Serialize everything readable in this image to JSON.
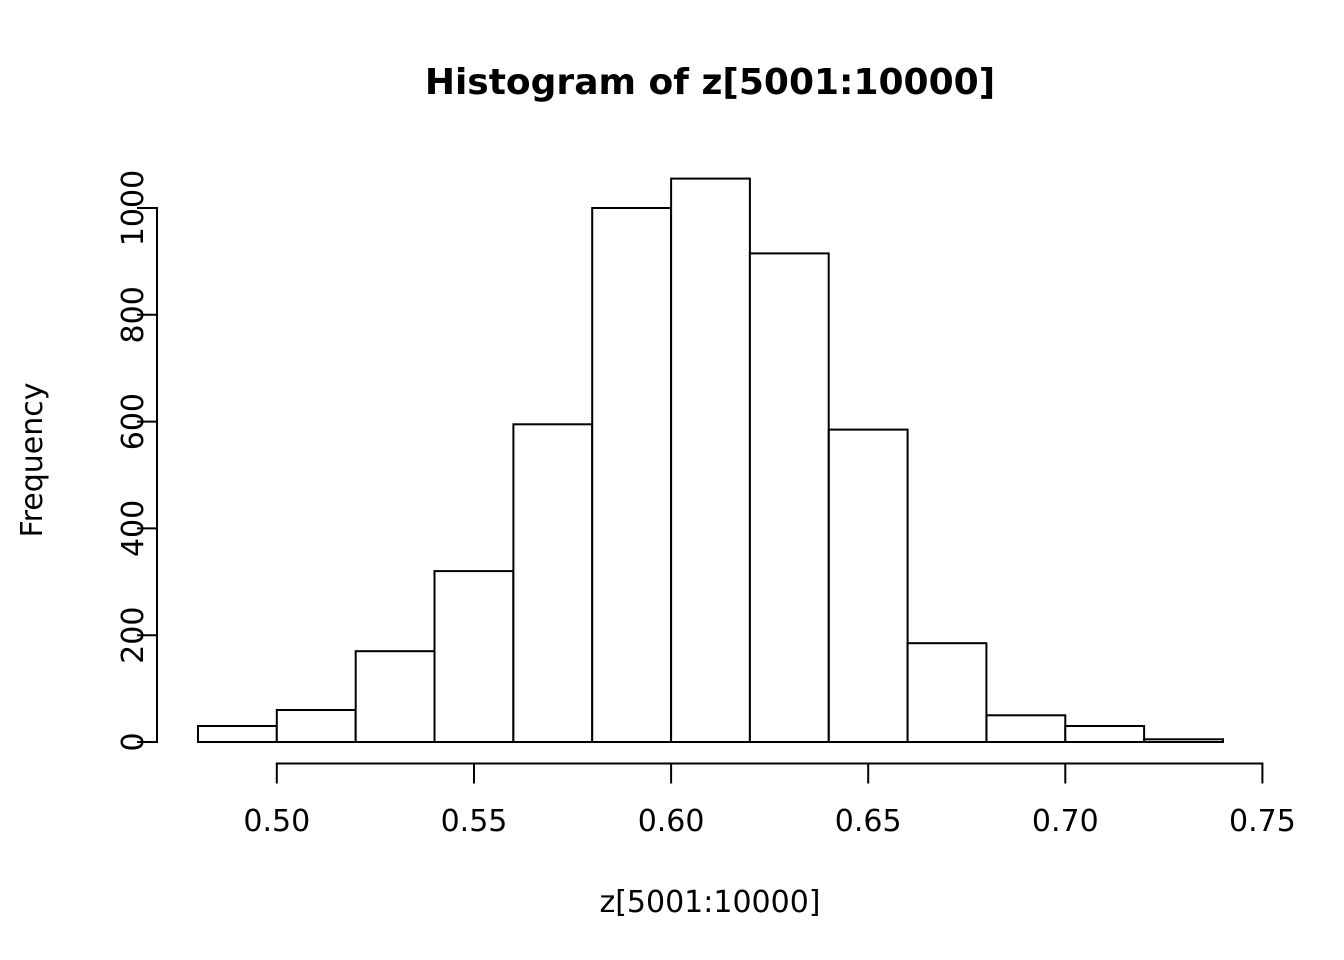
{
  "chart_data": {
    "type": "bar",
    "subtype": "histogram",
    "title": "Histogram of z[5001:10000]",
    "xlabel": "z[5001:10000]",
    "ylabel": "Frequency",
    "bin_edges": [
      0.48,
      0.5,
      0.52,
      0.54,
      0.56,
      0.58,
      0.6,
      0.62,
      0.64,
      0.66,
      0.68,
      0.7,
      0.72,
      0.74
    ],
    "counts": [
      30,
      60,
      170,
      320,
      595,
      1000,
      1055,
      915,
      585,
      185,
      50,
      30,
      5
    ],
    "x_tick_labels": [
      "0.50",
      "0.55",
      "0.60",
      "0.65",
      "0.70",
      "0.75"
    ],
    "x_tick_values": [
      0.5,
      0.55,
      0.6,
      0.65,
      0.7,
      0.75
    ],
    "y_tick_labels": [
      "0",
      "200",
      "400",
      "600",
      "800",
      "1000"
    ],
    "y_tick_values": [
      0,
      200,
      400,
      600,
      800,
      1000
    ],
    "xlim": [
      0.48,
      0.75
    ],
    "ylim": [
      0,
      1055
    ],
    "grid": "off",
    "legend": "none",
    "colors": {
      "background": "#ffffff",
      "bar_fill": "#ffffff",
      "bar_border": "#000000",
      "axis": "#000000",
      "text": "#000000"
    }
  }
}
